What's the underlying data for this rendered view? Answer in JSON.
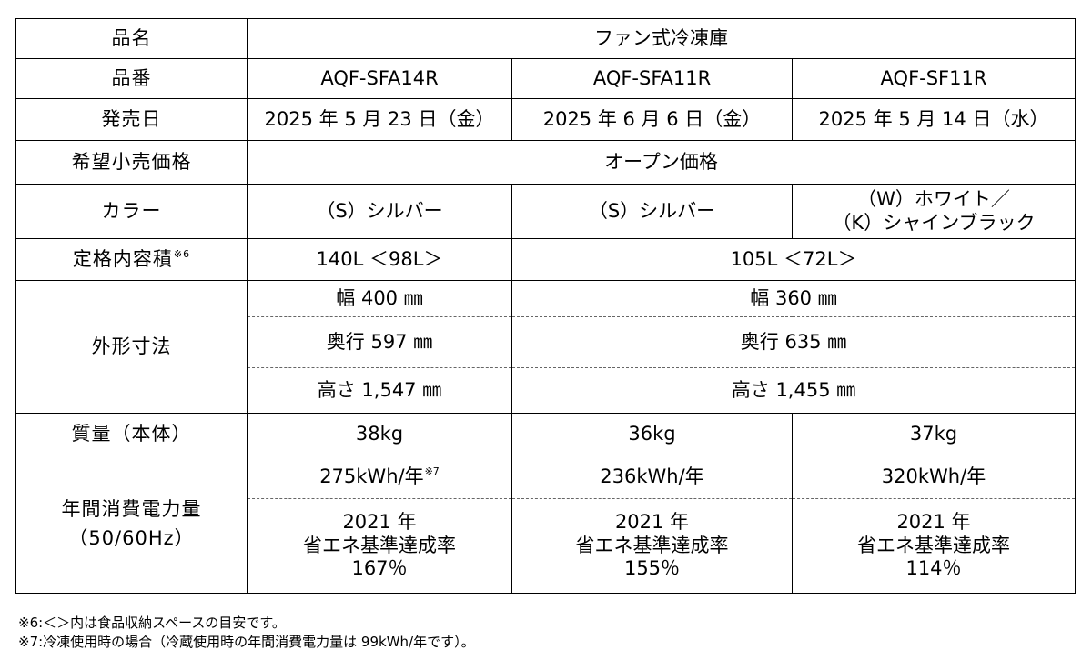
{
  "spec": {
    "rows": {
      "name": {
        "label": "品名",
        "value": "ファン式冷凍庫"
      },
      "model": {
        "label": "品番",
        "values": [
          "AQF-SFA14R",
          "AQF-SFA11R",
          "AQF-SF11R"
        ]
      },
      "release": {
        "label": "発売日",
        "values": [
          "2025 年 5 月 23 日（金）",
          "2025 年 6 月 6 日（金）",
          "2025 年 5 月 14 日（水）"
        ]
      },
      "price": {
        "label": "希望小売価格",
        "value": "オープン価格"
      },
      "color": {
        "label": "カラー",
        "values": [
          "（S）シルバー",
          "（S）シルバー"
        ],
        "col3_line1": "（W）ホワイト／",
        "col3_line2": "（K）シャインブラック"
      },
      "capacity": {
        "label": "定格内容積",
        "label_note": "※6",
        "values": [
          "140L ＜98L＞",
          "105L ＜72L＞"
        ]
      },
      "dims": {
        "label": "外形寸法",
        "width": [
          "幅 400 ㎜",
          "幅 360 ㎜"
        ],
        "depth": [
          "奥行 597 ㎜",
          "奥行 635 ㎜"
        ],
        "height": [
          "高さ 1,547 ㎜",
          "高さ 1,455 ㎜"
        ]
      },
      "mass": {
        "label": "質量（本体）",
        "values": [
          "38kg",
          "36kg",
          "37kg"
        ]
      },
      "energy": {
        "label_line1": "年間消費電力量",
        "label_line2": "（50/60Hz）",
        "values": [
          "275kWh/年",
          "236kWh/年",
          "320kWh/年"
        ],
        "value1_note": "※7",
        "rate_year": "2021 年",
        "rate_label": "省エネ基準達成率",
        "rates": [
          "167％",
          "155％",
          "114％"
        ]
      }
    }
  },
  "notes": [
    "※6:＜＞内は食品収納スペースの目安です。",
    "※7:冷凍使用時の場合（冷蔵使用時の年間消費電力量は 99kWh/年です）。"
  ]
}
